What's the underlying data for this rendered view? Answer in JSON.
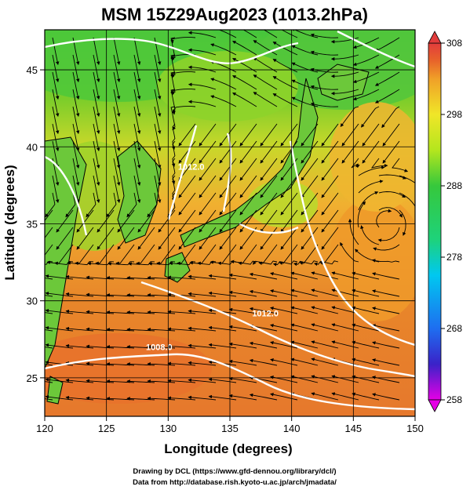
{
  "title": "MSM 15Z29Aug2023 (1013.2hPa)",
  "xaxis": {
    "label": "Longitude (degrees)",
    "range": [
      120,
      150
    ],
    "ticks": [
      "120",
      "125",
      "130",
      "135",
      "140",
      "145",
      "150"
    ]
  },
  "yaxis": {
    "label": "Latitude  (degrees)",
    "range": [
      22.5,
      47.6
    ],
    "ticks": [
      "25",
      "30",
      "35",
      "40",
      "45"
    ]
  },
  "colorbar": {
    "range": [
      258,
      308
    ],
    "ticks": [
      "308",
      "298",
      "288",
      "278",
      "268",
      "258"
    ],
    "colors": [
      "#e500e5",
      "#3a22c8",
      "#1e6ef0",
      "#00c8f0",
      "#1ed27a",
      "#36c83c",
      "#b4e61e",
      "#f0e628",
      "#f0a028",
      "#e8642a",
      "#e23c3c"
    ]
  },
  "contours": [
    {
      "label": "1008.0",
      "lon": 128.2,
      "lat": 26.8
    },
    {
      "label": "1012.0",
      "lon": 130.8,
      "lat": 38.5
    },
    {
      "label": "1012.0",
      "lon": 136.8,
      "lat": 29.0
    }
  ],
  "credits": {
    "line1": "Drawing by DCL (https://www.gfd-dennou.org/library/dcl/)",
    "line2": "Data from http://database.rish.kyoto-u.ac.jp/arch/jmadata/"
  },
  "field_colors": {
    "warm": "#e8862a",
    "mid": "#f0c030",
    "cool": "#7ccd2a",
    "green": "#3ec83a"
  }
}
